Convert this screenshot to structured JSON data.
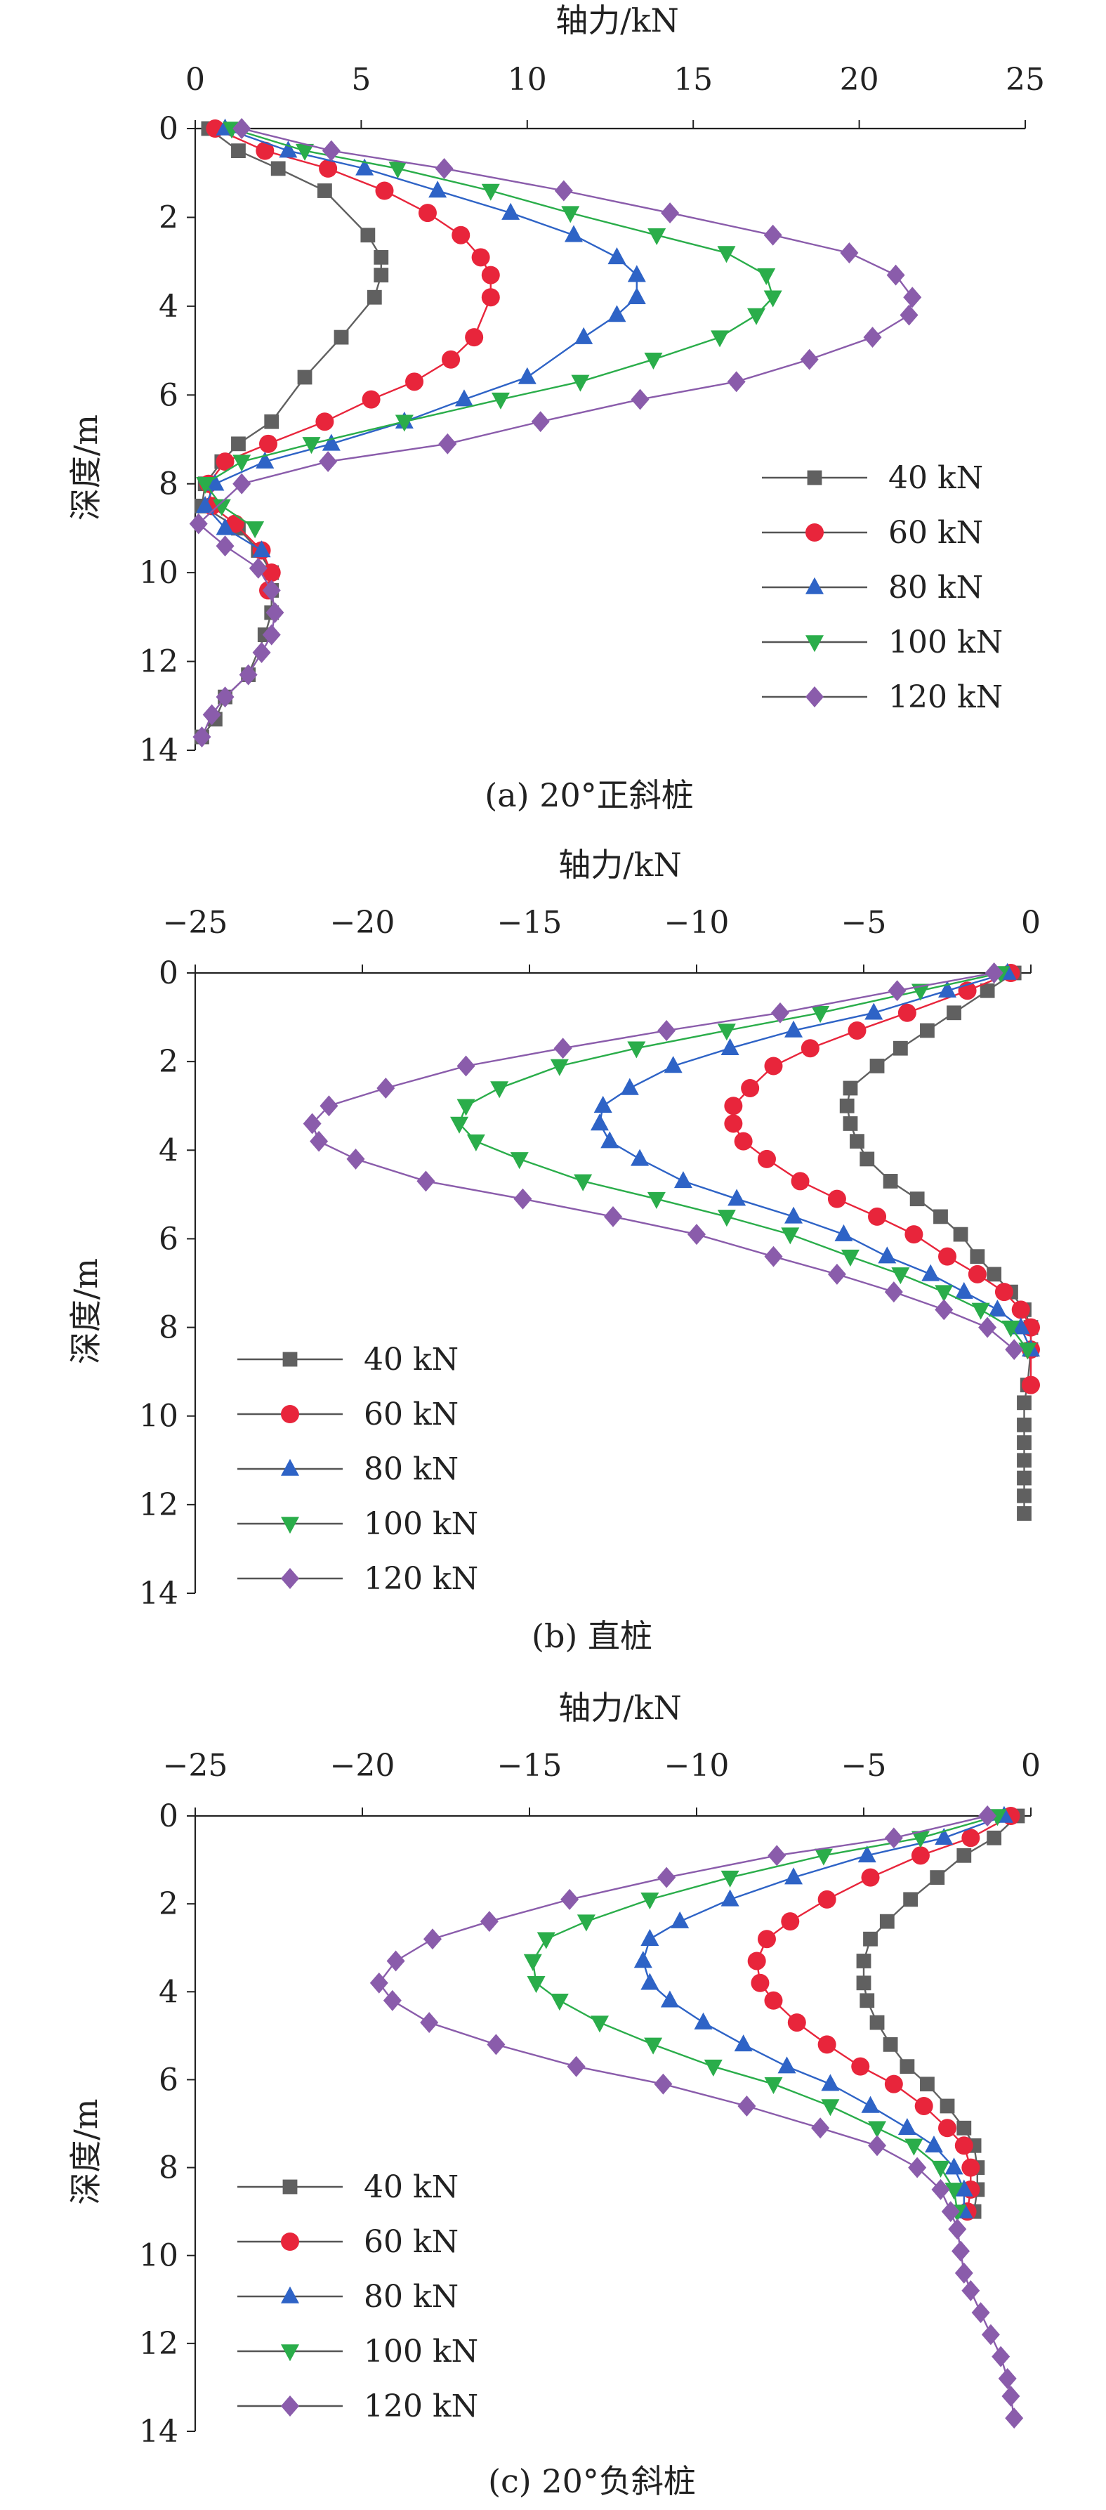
{
  "figure": {
    "colors": {
      "40 kN": "#606060",
      "60 kN": "#e8253b",
      "80 kN": "#2e63c6",
      "100 kN": "#2aad4a",
      "120 kN": "#8a5cab"
    },
    "markers": {
      "40 kN": "square",
      "60 kN": "circle",
      "80 kN": "triangle-up",
      "100 kN": "triangle-down",
      "120 kN": "diamond"
    }
  },
  "chart_data": [
    {
      "type": "line",
      "caption": "(a) 20°正斜桩",
      "xlabel": "轴力/kN",
      "ylabel": "深度/m",
      "xlim": [
        0,
        25
      ],
      "ylim": [
        0,
        14
      ],
      "xticks": [
        0,
        5,
        10,
        15,
        20,
        25
      ],
      "yticks": [
        0,
        2,
        4,
        6,
        8,
        10,
        12,
        14
      ],
      "legend_position": "right",
      "series": [
        {
          "name": "40 kN",
          "x": [
            0.4,
            1.3,
            2.5,
            3.9,
            5.2,
            5.6,
            5.6,
            5.4,
            4.4,
            3.3,
            2.3,
            1.3,
            0.8,
            0.3,
            0.2,
            1.3,
            1.9,
            2.3,
            2.3,
            2.3,
            2.1,
            1.6,
            0.9,
            0.6,
            0.2
          ],
          "y": [
            0,
            0.5,
            0.9,
            1.4,
            2.4,
            2.9,
            3.3,
            3.8,
            4.7,
            5.6,
            6.6,
            7.1,
            7.5,
            8.0,
            8.5,
            9.0,
            9.5,
            10.0,
            10.4,
            10.9,
            11.4,
            12.3,
            12.8,
            13.3,
            13.7
          ]
        },
        {
          "name": "60 kN",
          "x": [
            0.6,
            2.1,
            4.0,
            5.7,
            7.0,
            8.0,
            8.6,
            8.9,
            8.9,
            8.4,
            7.7,
            6.6,
            5.3,
            3.9,
            2.2,
            0.9,
            0.4,
            0.5,
            1.2,
            2.0,
            2.3,
            2.2
          ],
          "y": [
            0,
            0.5,
            0.9,
            1.4,
            1.9,
            2.4,
            2.9,
            3.3,
            3.8,
            4.7,
            5.2,
            5.7,
            6.1,
            6.6,
            7.1,
            7.5,
            8.0,
            8.5,
            8.9,
            9.5,
            10.0,
            10.4
          ]
        },
        {
          "name": "80 kN",
          "x": [
            0.9,
            2.8,
            5.1,
            7.3,
            9.5,
            11.4,
            12.7,
            13.3,
            13.3,
            12.7,
            11.7,
            10.0,
            8.1,
            6.3,
            4.1,
            2.1,
            0.6,
            0.3,
            0.9,
            2.0
          ],
          "y": [
            0,
            0.5,
            0.9,
            1.4,
            1.9,
            2.4,
            2.9,
            3.3,
            3.8,
            4.2,
            4.7,
            5.6,
            6.1,
            6.6,
            7.1,
            7.5,
            8.0,
            8.5,
            9.0,
            9.5
          ]
        },
        {
          "name": "100 kN",
          "x": [
            1.1,
            3.3,
            6.1,
            8.9,
            11.3,
            13.9,
            16.0,
            17.2,
            17.4,
            16.9,
            15.8,
            13.8,
            11.6,
            9.2,
            6.3,
            3.5,
            1.4,
            0.3,
            0.8,
            1.8
          ],
          "y": [
            0,
            0.5,
            0.9,
            1.4,
            1.9,
            2.4,
            2.8,
            3.3,
            3.8,
            4.2,
            4.7,
            5.2,
            5.7,
            6.1,
            6.6,
            7.1,
            7.5,
            8.0,
            8.5,
            9.0
          ]
        },
        {
          "name": "120 kN",
          "x": [
            1.4,
            4.1,
            7.5,
            11.1,
            14.3,
            17.4,
            19.7,
            21.1,
            21.6,
            21.5,
            20.4,
            18.5,
            16.3,
            13.4,
            10.4,
            7.6,
            4.0,
            1.4,
            0.1,
            0.9,
            1.9,
            2.3,
            2.4,
            2.3,
            2.0,
            1.6,
            0.9,
            0.5,
            0.2
          ],
          "y": [
            0,
            0.5,
            0.9,
            1.4,
            1.9,
            2.4,
            2.8,
            3.3,
            3.8,
            4.2,
            4.7,
            5.2,
            5.7,
            6.1,
            6.6,
            7.1,
            7.5,
            8.0,
            8.9,
            9.4,
            9.9,
            10.4,
            10.9,
            11.4,
            11.8,
            12.3,
            12.8,
            13.2,
            13.7
          ]
        }
      ]
    },
    {
      "type": "line",
      "caption": "(b) 直桩",
      "xlabel": "轴力/kN",
      "ylabel": "深度/m",
      "xlim": [
        -25,
        0
      ],
      "ylim": [
        0,
        14
      ],
      "xticks": [
        -25,
        -20,
        -15,
        -10,
        -5,
        0
      ],
      "yticks": [
        0,
        2,
        4,
        6,
        8,
        10,
        12,
        14
      ],
      "legend_position": "left",
      "series": [
        {
          "name": "40 kN",
          "x": [
            -0.5,
            -1.3,
            -2.3,
            -3.1,
            -3.9,
            -4.6,
            -5.4,
            -5.5,
            -5.4,
            -5.2,
            -4.9,
            -4.2,
            -3.4,
            -2.7,
            -2.1,
            -1.6,
            -1.1,
            -0.6,
            -0.2,
            0,
            0,
            -0.1,
            -0.2,
            -0.2,
            -0.2,
            -0.2,
            -0.2,
            -0.2,
            -0.2
          ],
          "y": [
            0,
            0.4,
            0.9,
            1.3,
            1.7,
            2.1,
            2.6,
            3.0,
            3.4,
            3.8,
            4.2,
            4.7,
            5.1,
            5.5,
            5.9,
            6.4,
            6.8,
            7.2,
            7.6,
            8.0,
            8.5,
            9.3,
            9.7,
            10.2,
            10.6,
            11.0,
            11.4,
            11.8,
            12.2
          ]
        },
        {
          "name": "60 kN",
          "x": [
            -0.6,
            -1.9,
            -3.7,
            -5.2,
            -6.6,
            -7.7,
            -8.4,
            -8.9,
            -8.9,
            -8.6,
            -7.9,
            -6.9,
            -5.8,
            -4.6,
            -3.5,
            -2.5,
            -1.6,
            -0.8,
            -0.3,
            0,
            0,
            0
          ],
          "y": [
            0,
            0.4,
            0.9,
            1.3,
            1.7,
            2.1,
            2.6,
            3.0,
            3.4,
            3.8,
            4.2,
            4.7,
            5.1,
            5.5,
            5.9,
            6.4,
            6.8,
            7.2,
            7.6,
            8.0,
            8.5,
            9.3
          ]
        },
        {
          "name": "80 kN",
          "x": [
            -0.7,
            -2.5,
            -4.7,
            -7.1,
            -9.0,
            -10.7,
            -12.0,
            -12.8,
            -12.9,
            -12.6,
            -11.7,
            -10.4,
            -8.8,
            -7.1,
            -5.6,
            -4.3,
            -3.0,
            -2.0,
            -1.0,
            -0.3,
            0
          ],
          "y": [
            0,
            0.4,
            0.9,
            1.3,
            1.7,
            2.1,
            2.6,
            3.0,
            3.4,
            3.8,
            4.2,
            4.7,
            5.1,
            5.5,
            5.9,
            6.4,
            6.8,
            7.2,
            7.6,
            8.0,
            8.5
          ]
        },
        {
          "name": "100 kN",
          "x": [
            -0.9,
            -3.3,
            -6.3,
            -9.1,
            -11.8,
            -14.1,
            -15.9,
            -16.9,
            -17.1,
            -16.6,
            -15.3,
            -13.4,
            -11.2,
            -9.1,
            -7.2,
            -5.4,
            -3.9,
            -2.6,
            -1.5,
            -0.6,
            -0.1
          ],
          "y": [
            0,
            0.4,
            0.9,
            1.3,
            1.7,
            2.1,
            2.6,
            3.0,
            3.4,
            3.8,
            4.2,
            4.7,
            5.1,
            5.5,
            5.9,
            6.4,
            6.8,
            7.2,
            7.6,
            8.0,
            8.5
          ]
        },
        {
          "name": "120 kN",
          "x": [
            -1.1,
            -4.0,
            -7.5,
            -10.9,
            -14.0,
            -16.9,
            -19.3,
            -21.0,
            -21.5,
            -21.3,
            -20.2,
            -18.1,
            -15.2,
            -12.5,
            -10.0,
            -7.7,
            -5.8,
            -4.1,
            -2.6,
            -1.3,
            -0.5
          ],
          "y": [
            0,
            0.4,
            0.9,
            1.3,
            1.7,
            2.1,
            2.6,
            3.0,
            3.4,
            3.8,
            4.2,
            4.7,
            5.1,
            5.5,
            5.9,
            6.4,
            6.8,
            7.2,
            7.6,
            8.0,
            8.5
          ]
        }
      ]
    },
    {
      "type": "line",
      "caption": "(c) 20°负斜桩",
      "xlabel": "轴力/kN",
      "ylabel": "深度/m",
      "xlim": [
        -25,
        0
      ],
      "ylim": [
        0,
        14
      ],
      "xticks": [
        -25,
        -20,
        -15,
        -10,
        -5,
        0
      ],
      "yticks": [
        0,
        2,
        4,
        6,
        8,
        10,
        12,
        14
      ],
      "legend_position": "left",
      "series": [
        {
          "name": "40 kN",
          "x": [
            -0.4,
            -1.1,
            -2.0,
            -2.8,
            -3.6,
            -4.3,
            -4.8,
            -5.0,
            -5.0,
            -4.9,
            -4.6,
            -4.2,
            -3.7,
            -3.1,
            -2.5,
            -2.0,
            -1.7,
            -1.6,
            -1.6,
            -1.7
          ],
          "y": [
            0,
            0.5,
            0.9,
            1.4,
            1.9,
            2.4,
            2.8,
            3.3,
            3.8,
            4.2,
            4.7,
            5.2,
            5.7,
            6.1,
            6.6,
            7.1,
            7.5,
            8.0,
            8.5,
            9.0
          ]
        },
        {
          "name": "60 kN",
          "x": [
            -0.6,
            -1.8,
            -3.3,
            -4.8,
            -6.1,
            -7.2,
            -7.9,
            -8.2,
            -8.1,
            -7.7,
            -7.0,
            -6.1,
            -5.1,
            -4.1,
            -3.2,
            -2.5,
            -2.0,
            -1.8,
            -1.8,
            -1.9
          ],
          "y": [
            0,
            0.5,
            0.9,
            1.4,
            1.9,
            2.4,
            2.8,
            3.3,
            3.8,
            4.2,
            4.7,
            5.2,
            5.7,
            6.1,
            6.6,
            7.1,
            7.5,
            8.0,
            8.5,
            9.0
          ]
        },
        {
          "name": "80 kN",
          "x": [
            -0.8,
            -2.6,
            -4.9,
            -7.1,
            -9.0,
            -10.5,
            -11.4,
            -11.6,
            -11.4,
            -10.8,
            -9.8,
            -8.6,
            -7.3,
            -6.0,
            -4.8,
            -3.7,
            -2.9,
            -2.3,
            -2.0,
            -2.0
          ],
          "y": [
            0,
            0.5,
            0.9,
            1.4,
            1.9,
            2.4,
            2.8,
            3.3,
            3.8,
            4.2,
            4.7,
            5.2,
            5.7,
            6.1,
            6.6,
            7.1,
            7.5,
            8.0,
            8.5,
            9.0
          ]
        },
        {
          "name": "100 kN",
          "x": [
            -1.0,
            -3.3,
            -6.2,
            -9.0,
            -11.4,
            -13.3,
            -14.5,
            -14.9,
            -14.8,
            -14.1,
            -12.9,
            -11.3,
            -9.5,
            -7.7,
            -6.0,
            -4.6,
            -3.5,
            -2.7,
            -2.3,
            -2.2
          ],
          "y": [
            0,
            0.5,
            0.9,
            1.4,
            1.9,
            2.4,
            2.8,
            3.3,
            3.8,
            4.2,
            4.7,
            5.2,
            5.7,
            6.1,
            6.6,
            7.1,
            7.5,
            8.0,
            8.5,
            9.0
          ]
        },
        {
          "name": "120 kN",
          "x": [
            -1.3,
            -4.1,
            -7.6,
            -10.9,
            -13.8,
            -16.2,
            -17.9,
            -19.0,
            -19.5,
            -19.1,
            -18.0,
            -16.0,
            -13.6,
            -11.0,
            -8.5,
            -6.3,
            -4.6,
            -3.4,
            -2.7,
            -2.4,
            -2.2,
            -2.1,
            -2.0,
            -1.8,
            -1.5,
            -1.2,
            -0.9,
            -0.7,
            -0.6,
            -0.5
          ],
          "y": [
            0,
            0.5,
            0.9,
            1.4,
            1.9,
            2.4,
            2.8,
            3.3,
            3.8,
            4.2,
            4.7,
            5.2,
            5.7,
            6.1,
            6.6,
            7.1,
            7.5,
            8.0,
            8.5,
            9.0,
            9.4,
            9.9,
            10.4,
            10.8,
            11.3,
            11.8,
            12.3,
            12.8,
            13.2,
            13.7
          ]
        }
      ]
    }
  ]
}
